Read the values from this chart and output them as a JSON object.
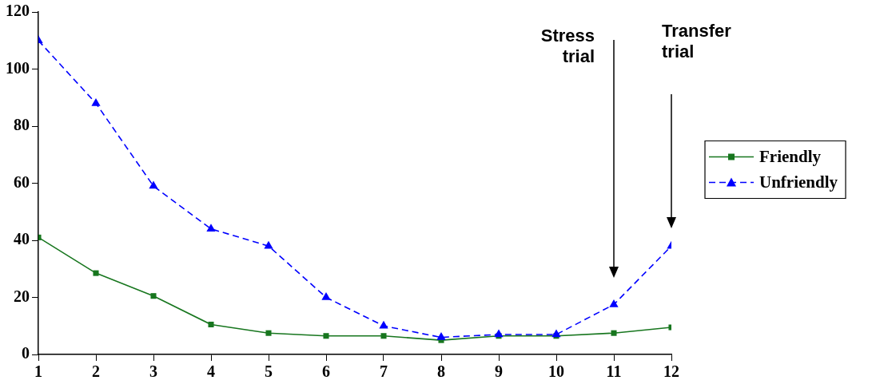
{
  "chart_data": {
    "type": "line",
    "x": [
      1,
      2,
      3,
      4,
      5,
      6,
      7,
      8,
      9,
      10,
      11,
      12
    ],
    "xlim": [
      1,
      12
    ],
    "xticks": [
      1,
      2,
      3,
      4,
      5,
      6,
      7,
      8,
      9,
      10,
      11,
      12
    ],
    "ylim": [
      0,
      120
    ],
    "yticks": [
      0,
      20,
      40,
      60,
      80,
      100,
      120
    ],
    "series": [
      {
        "name": "Friendly",
        "color": "#17761e",
        "marker": "square",
        "line_style": "solid",
        "values": [
          41,
          28.5,
          20.5,
          10.5,
          7.5,
          6.5,
          6.5,
          5,
          6.5,
          6.5,
          7.5,
          9.5
        ]
      },
      {
        "name": "Unfriendly",
        "color": "#0000ff",
        "marker": "triangle",
        "line_style": "dashed",
        "values": [
          110,
          88,
          59,
          44,
          38,
          20,
          10,
          6,
          7,
          7,
          17.5,
          38
        ]
      }
    ],
    "annotations": [
      "Stress trial",
      "Transfer trial"
    ],
    "grid": false,
    "legend": "right"
  }
}
